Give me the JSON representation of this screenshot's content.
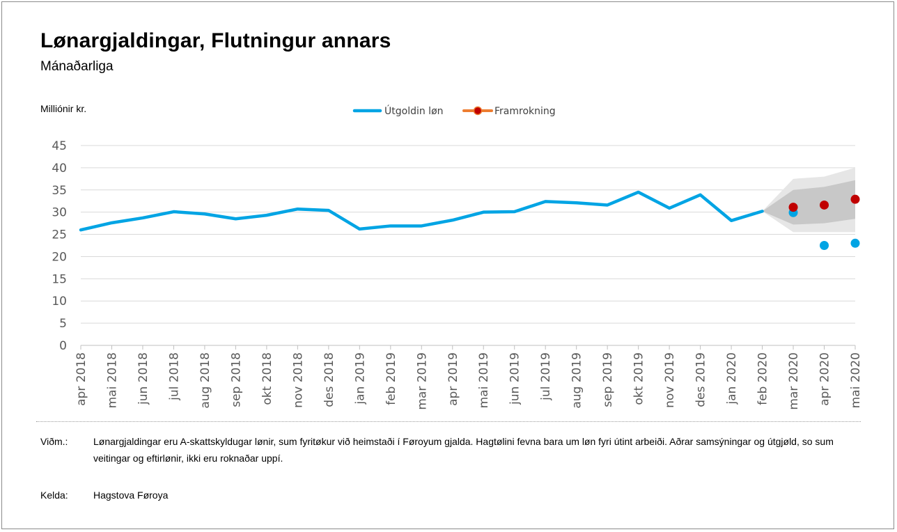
{
  "title": "Lønargjaldingar, Flutningur annars",
  "subtitle": "Mánaðarliga",
  "unit_label": "Milliónir kr.",
  "colors": {
    "actual": "#00a4e4",
    "forecast_line": "#ed7d31",
    "forecast_marker": "#c00000",
    "band_outer": "#e6e6e6",
    "band_inner": "#c8c8c8",
    "grid": "#d9d9d9",
    "axis": "#bfbfbf"
  },
  "chart_data": {
    "type": "line",
    "ylim": [
      0,
      45
    ],
    "yticks": [
      0,
      5,
      10,
      15,
      20,
      25,
      30,
      35,
      40,
      45
    ],
    "grid": true,
    "legend_position": "top-center",
    "categories": [
      "apr 2018",
      "mai 2018",
      "jun 2018",
      "jul 2018",
      "aug 2018",
      "sep 2018",
      "okt 2018",
      "nov 2018",
      "des 2018",
      "jan 2019",
      "feb 2019",
      "mar 2019",
      "apr 2019",
      "mai 2019",
      "jun 2019",
      "jul 2019",
      "aug 2019",
      "sep 2019",
      "okt 2019",
      "nov 2019",
      "des 2019",
      "jan 2020",
      "feb 2020",
      "mar 2020",
      "apr 2020",
      "mai 2020"
    ],
    "series": [
      {
        "name": "Útgoldin løn",
        "style": "line",
        "values": [
          26.0,
          27.6,
          28.7,
          30.1,
          29.6,
          28.5,
          29.3,
          30.7,
          30.4,
          26.2,
          26.9,
          26.9,
          28.2,
          30.0,
          30.1,
          32.4,
          32.1,
          31.6,
          34.5,
          30.9,
          33.9,
          28.1,
          30.2,
          null,
          null,
          null
        ],
        "extra_points": [
          {
            "x": "mar 2020",
            "y": 29.9
          },
          {
            "x": "apr 2020",
            "y": 22.5
          },
          {
            "x": "mai 2020",
            "y": 23.0
          }
        ]
      },
      {
        "name": "Framrokning",
        "style": "markers",
        "values": [
          null,
          null,
          null,
          null,
          null,
          null,
          null,
          null,
          null,
          null,
          null,
          null,
          null,
          null,
          null,
          null,
          null,
          null,
          null,
          null,
          null,
          null,
          null,
          31.1,
          31.6,
          32.9
        ]
      }
    ],
    "forecast_band": {
      "x": [
        "feb 2020",
        "mar 2020",
        "apr 2020",
        "mai 2020"
      ],
      "outer_low": [
        30.2,
        25.5,
        25.5,
        25.5
      ],
      "outer_high": [
        30.2,
        37.5,
        38.0,
        40.0
      ],
      "inner_low": [
        30.2,
        27.2,
        27.5,
        28.5
      ],
      "inner_high": [
        30.2,
        35.0,
        35.7,
        37.2
      ]
    }
  },
  "notes": {
    "remark_label": "Viðm.:",
    "remark_text": "Lønargjaldingar eru A-skattskyldugar lønir, sum fyritøkur við heimstaði í Føroyum gjalda. Hagtølini fevna bara um løn fyri útint arbeiði. Aðrar samsýningar og útgjøld, so sum veitingar og eftirlønir, ikki eru roknaðar uppí.",
    "source_label": "Kelda:",
    "source_text": "Hagstova Føroya"
  }
}
